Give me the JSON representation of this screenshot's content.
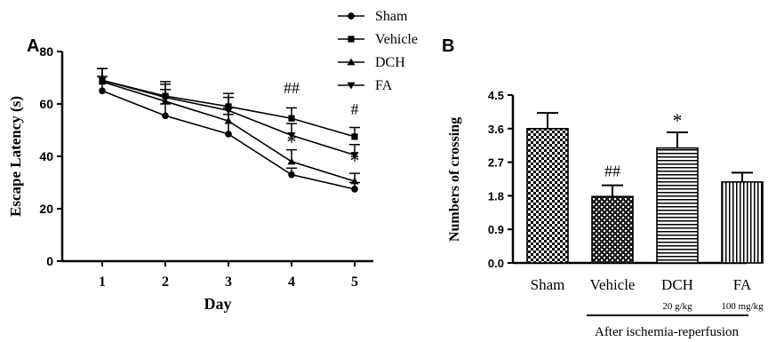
{
  "figure": {
    "panel_a_letter": "A",
    "panel_b_letter": "B"
  },
  "chart_data": [
    {
      "type": "line",
      "panel": "A",
      "title": "",
      "xlabel": "Day",
      "ylabel": "Escape Latency (s)",
      "x": [
        1,
        2,
        3,
        4,
        5
      ],
      "xticks": [
        "1",
        "2",
        "3",
        "4",
        "5"
      ],
      "ylim": [
        0,
        80
      ],
      "yticks": [
        "0",
        "20",
        "40",
        "60",
        "80"
      ],
      "grid": false,
      "legend": "top-right outside",
      "series": [
        {
          "name": "Sham",
          "marker": "circle",
          "values": [
            65,
            55.5,
            48.5,
            33,
            27.5
          ],
          "errors": [
            5.5,
            4.5,
            7.5,
            2.5,
            2.5
          ]
        },
        {
          "name": "Vehicle",
          "marker": "square",
          "values": [
            69,
            63,
            59,
            54.5,
            47.5
          ],
          "errors": [
            4.5,
            5.5,
            5,
            4,
            3.5
          ]
        },
        {
          "name": "DCH",
          "marker": "triangle-up",
          "values": [
            68.5,
            61,
            53.5,
            38,
            30.5
          ],
          "errors": [
            5,
            4.5,
            5,
            4.5,
            3
          ]
        },
        {
          "name": "FA",
          "marker": "triangle-down",
          "values": [
            69,
            62.5,
            57.5,
            48,
            40.5
          ],
          "errors": [
            4.5,
            5,
            5,
            4.5,
            4
          ]
        }
      ],
      "annotations": [
        {
          "x": 4,
          "y": 64,
          "text": "##"
        },
        {
          "x": 5,
          "y": 56,
          "text": "#"
        },
        {
          "x": 4,
          "y": 43,
          "text": "*"
        },
        {
          "x": 5,
          "y": 36,
          "text": "*"
        }
      ]
    },
    {
      "type": "bar",
      "panel": "B",
      "title": "",
      "xlabel": "",
      "ylabel": "Numbers of crossing",
      "categories": [
        "Sham",
        "Vehicle",
        "DCH",
        "FA"
      ],
      "values": [
        3.6,
        1.78,
        3.08,
        2.17
      ],
      "errors": [
        0.42,
        0.3,
        0.42,
        0.25
      ],
      "patterns": [
        "checker",
        "checker-dark",
        "horizontal-lines",
        "vertical-lines"
      ],
      "ylim": [
        0,
        4.5
      ],
      "yticks": [
        "0.0",
        "0.9",
        "1.8",
        "2.7",
        "3.6",
        "4.5"
      ],
      "grid": false,
      "annotations": [
        {
          "category": "Vehicle",
          "text": "##"
        },
        {
          "category": "DCH",
          "text": "*"
        }
      ],
      "dose_labels": [
        {
          "category": "DCH",
          "text": "20 g/kg"
        },
        {
          "category": "FA",
          "text": "100 mg/kg"
        }
      ],
      "bracket_label": "After ischemia-reperfusion"
    }
  ]
}
